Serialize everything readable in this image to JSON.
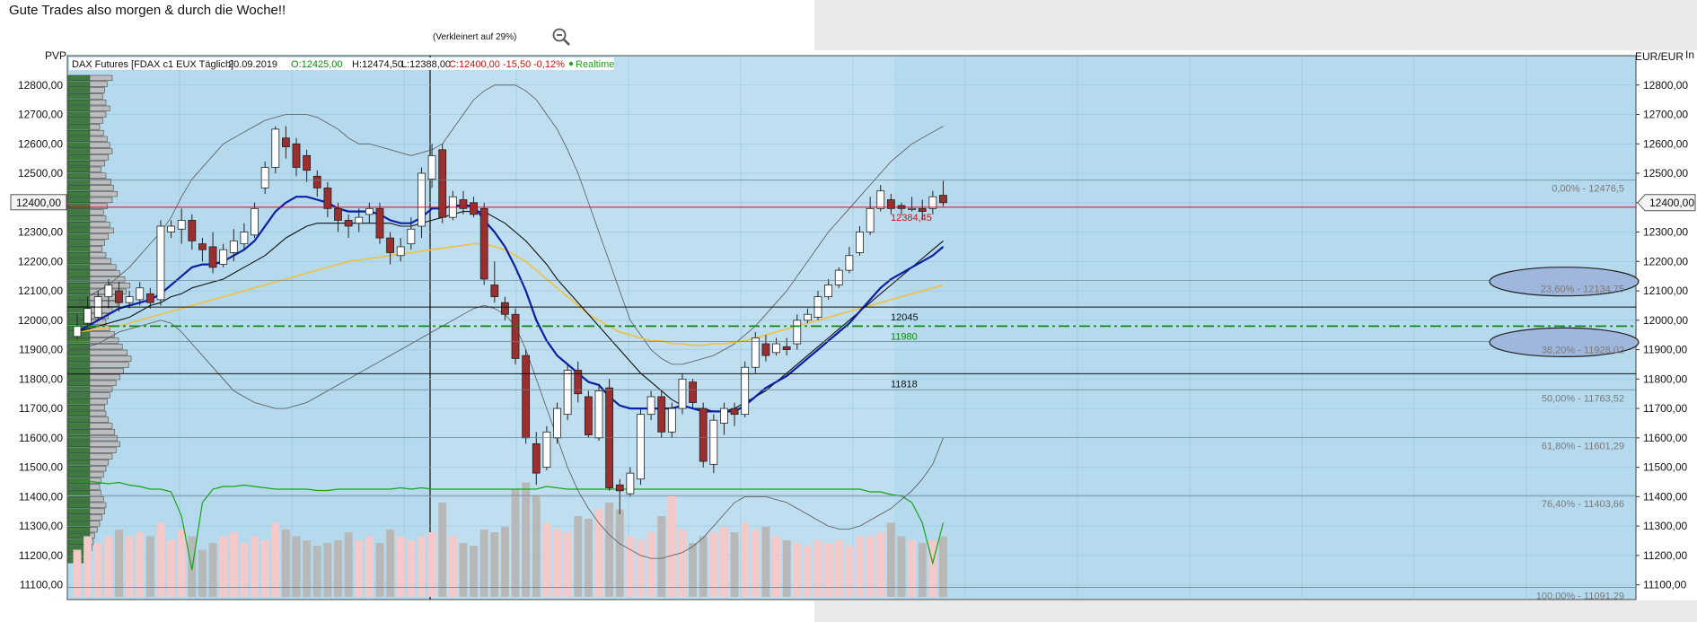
{
  "page": {
    "headline": "Gute Trades also morgen & durch die Woche!!",
    "zoom_caption": "(Verkleinert auf 29%)"
  },
  "chart_data": {
    "type": "candlestick",
    "instrument": "DAX Futures [FDAX c1 EUX Täglich]",
    "header": {
      "date": "20.09.2019",
      "open_label": "O:12425,00",
      "high_label": "H:12474,50",
      "low_label": "L:12388,00",
      "close_label": "C:12400,00",
      "change_label": "-15,50",
      "change_pct_label": "-0,12%",
      "realtime_label": "Realtime"
    },
    "left_axis_label": "PVP",
    "right_axis_label": "EUR/EUR",
    "corner_label": "In",
    "ylim": [
      11050,
      12900
    ],
    "yticks": [
      12800,
      12700,
      12600,
      12500,
      12400,
      12300,
      12200,
      12100,
      12000,
      11900,
      11800,
      11700,
      11600,
      11500,
      11400,
      11300,
      11200,
      11100
    ],
    "ytick_labels": [
      "12800,00",
      "12700,00",
      "12600,00",
      "12500,00",
      "12400,00",
      "12300,00",
      "12200,00",
      "12100,00",
      "12000,00",
      "11900,00",
      "11800,00",
      "11700,00",
      "11600,00",
      "11500,00",
      "11400,00",
      "11300,00",
      "11200,00",
      "11100,00"
    ],
    "last_price": 12400,
    "last_price_label": "12400,00",
    "candles": [
      [
        11945,
        11980,
        11935,
        12020
      ],
      [
        11990,
        12040,
        11980,
        12080
      ],
      [
        12010,
        12080,
        12000,
        12100
      ],
      [
        12080,
        12120,
        12040,
        12140
      ],
      [
        12100,
        12060,
        12030,
        12130
      ],
      [
        12060,
        12080,
        12040,
        12100
      ],
      [
        12070,
        12110,
        12050,
        12130
      ],
      [
        12090,
        12060,
        12040,
        12110
      ],
      [
        12070,
        12320,
        12050,
        12340
      ],
      [
        12300,
        12320,
        12280,
        12340
      ],
      [
        12310,
        12340,
        12260,
        12380
      ],
      [
        12340,
        12270,
        12240,
        12360
      ],
      [
        12260,
        12240,
        12200,
        12280
      ],
      [
        12250,
        12180,
        12160,
        12300
      ],
      [
        12190,
        12240,
        12180,
        12260
      ],
      [
        12230,
        12270,
        12200,
        12310
      ],
      [
        12260,
        12300,
        12240,
        12330
      ],
      [
        12290,
        12380,
        12280,
        12400
      ],
      [
        12450,
        12520,
        12430,
        12540
      ],
      [
        12520,
        12650,
        12500,
        12660
      ],
      [
        12620,
        12590,
        12550,
        12660
      ],
      [
        12600,
        12520,
        12490,
        12620
      ],
      [
        12560,
        12510,
        12470,
        12580
      ],
      [
        12490,
        12450,
        12420,
        12510
      ],
      [
        12450,
        12380,
        12350,
        12470
      ],
      [
        12380,
        12340,
        12300,
        12400
      ],
      [
        12340,
        12320,
        12280,
        12360
      ],
      [
        12330,
        12350,
        12300,
        12380
      ],
      [
        12360,
        12380,
        12330,
        12400
      ],
      [
        12380,
        12280,
        12260,
        12400
      ],
      [
        12280,
        12230,
        12190,
        12300
      ],
      [
        12220,
        12250,
        12200,
        12280
      ],
      [
        12260,
        12310,
        12240,
        12350
      ],
      [
        12320,
        12500,
        12280,
        12520
      ],
      [
        12480,
        12560,
        12450,
        12600
      ],
      [
        12580,
        12350,
        12330,
        12600
      ],
      [
        12350,
        12420,
        12340,
        12440
      ],
      [
        12410,
        12380,
        12360,
        12440
      ],
      [
        12400,
        12360,
        12350,
        12420
      ],
      [
        12380,
        12140,
        12120,
        12400
      ],
      [
        12120,
        12080,
        12060,
        12200
      ],
      [
        12060,
        12020,
        12000,
        12080
      ],
      [
        12020,
        11870,
        11850,
        12040
      ],
      [
        11880,
        11600,
        11580,
        11900
      ],
      [
        11580,
        11480,
        11440,
        11620
      ],
      [
        11500,
        11620,
        11490,
        11640
      ],
      [
        11600,
        11700,
        11580,
        11720
      ],
      [
        11680,
        11830,
        11660,
        11850
      ],
      [
        11830,
        11750,
        11720,
        11860
      ],
      [
        11740,
        11610,
        11600,
        11760
      ],
      [
        11600,
        11760,
        11590,
        11780
      ],
      [
        11770,
        11430,
        11420,
        11800
      ],
      [
        11440,
        11420,
        11340,
        11460
      ],
      [
        11410,
        11480,
        11400,
        11500
      ],
      [
        11460,
        11680,
        11440,
        11700
      ],
      [
        11680,
        11740,
        11660,
        11760
      ],
      [
        11740,
        11620,
        11600,
        11760
      ],
      [
        11620,
        11700,
        11600,
        11720
      ],
      [
        11700,
        11800,
        11680,
        11820
      ],
      [
        11790,
        11720,
        11700,
        11800
      ],
      [
        11700,
        11520,
        11500,
        11720
      ],
      [
        11510,
        11660,
        11480,
        11680
      ],
      [
        11650,
        11700,
        11610,
        11720
      ],
      [
        11700,
        11680,
        11640,
        11720
      ],
      [
        11680,
        11840,
        11670,
        11860
      ],
      [
        11840,
        11940,
        11820,
        11960
      ],
      [
        11920,
        11880,
        11860,
        11950
      ],
      [
        11890,
        11920,
        11880,
        11940
      ],
      [
        11910,
        11900,
        11880,
        11940
      ],
      [
        11920,
        12000,
        11900,
        12020
      ],
      [
        12000,
        12020,
        11990,
        12040
      ],
      [
        12010,
        12080,
        12000,
        12100
      ],
      [
        12080,
        12120,
        12070,
        12140
      ],
      [
        12120,
        12170,
        12110,
        12180
      ],
      [
        12170,
        12220,
        12160,
        12250
      ],
      [
        12230,
        12300,
        12220,
        12320
      ],
      [
        12300,
        12380,
        12290,
        12420
      ],
      [
        12380,
        12440,
        12370,
        12460
      ],
      [
        12410,
        12380,
        12360,
        12430
      ],
      [
        12390,
        12380,
        12360,
        12400
      ],
      [
        12380,
        12380,
        12370,
        12420
      ],
      [
        12380,
        12370,
        12340,
        12410
      ],
      [
        12380,
        12420,
        12360,
        12440
      ],
      [
        12425,
        12400,
        12388,
        12474.5
      ]
    ],
    "volume_relative": [
      0.35,
      0.45,
      0.4,
      0.45,
      0.5,
      0.45,
      0.48,
      0.45,
      0.55,
      0.42,
      0.5,
      0.45,
      0.35,
      0.4,
      0.45,
      0.48,
      0.4,
      0.45,
      0.42,
      0.55,
      0.5,
      0.45,
      0.42,
      0.38,
      0.4,
      0.42,
      0.48,
      0.42,
      0.45,
      0.4,
      0.5,
      0.45,
      0.42,
      0.45,
      0.48,
      0.7,
      0.45,
      0.4,
      0.38,
      0.5,
      0.48,
      0.52,
      0.8,
      0.85,
      0.75,
      0.55,
      0.5,
      0.48,
      0.6,
      0.58,
      0.65,
      0.7,
      0.65,
      0.45,
      0.42,
      0.48,
      0.6,
      0.75,
      0.5,
      0.4,
      0.45,
      0.48,
      0.52,
      0.48,
      0.55,
      0.5,
      0.52,
      0.45,
      0.42,
      0.4,
      0.38,
      0.42,
      0.4,
      0.42,
      0.38,
      0.45,
      0.45,
      0.48,
      0.55,
      0.45,
      0.42,
      0.4,
      0.42,
      0.45
    ],
    "volume_series_relative": [
      0.85,
      0.86,
      0.85,
      0.84,
      0.85,
      0.83,
      0.82,
      0.8,
      0.8,
      0.78,
      0.6,
      0.2,
      0.7,
      0.8,
      0.82,
      0.82,
      0.83,
      0.82,
      0.81,
      0.8,
      0.8,
      0.8,
      0.8,
      0.79,
      0.79,
      0.8,
      0.8,
      0.8,
      0.8,
      0.8,
      0.8,
      0.81,
      0.8,
      0.81,
      0.8,
      0.8,
      0.8,
      0.8,
      0.8,
      0.8,
      0.8,
      0.8,
      0.8,
      0.8,
      0.8,
      0.82,
      0.81,
      0.8,
      0.8,
      0.8,
      0.8,
      0.8,
      0.8,
      0.8,
      0.8,
      0.8,
      0.8,
      0.8,
      0.8,
      0.8,
      0.8,
      0.8,
      0.8,
      0.8,
      0.8,
      0.8,
      0.8,
      0.8,
      0.8,
      0.8,
      0.8,
      0.8,
      0.8,
      0.8,
      0.8,
      0.8,
      0.78,
      0.78,
      0.76,
      0.75,
      0.7,
      0.55,
      0.25,
      0.55
    ],
    "ema_fast": [
      11960,
      11980,
      12000,
      12020,
      12040,
      12050,
      12060,
      12070,
      12090,
      12120,
      12150,
      12180,
      12190,
      12190,
      12200,
      12220,
      12240,
      12270,
      12320,
      12370,
      12400,
      12420,
      12420,
      12410,
      12400,
      12380,
      12370,
      12370,
      12370,
      12360,
      12340,
      12330,
      12330,
      12350,
      12380,
      12380,
      12390,
      12390,
      12390,
      12340,
      12300,
      12250,
      12180,
      12100,
      12000,
      11930,
      11880,
      11850,
      11820,
      11790,
      11780,
      11740,
      11710,
      11700,
      11700,
      11700,
      11700,
      11700,
      11710,
      11700,
      11690,
      11690,
      11690,
      11690,
      11710,
      11740,
      11770,
      11790,
      11810,
      11840,
      11870,
      11900,
      11930,
      11960,
      11990,
      12030,
      12070,
      12110,
      12140,
      12160,
      12180,
      12200,
      12220,
      12250
    ],
    "sma_mid": [
      11960,
      11970,
      11980,
      11990,
      12000,
      12010,
      12030,
      12050,
      12060,
      12080,
      12090,
      12110,
      12120,
      12130,
      12140,
      12160,
      12180,
      12200,
      12220,
      12250,
      12280,
      12300,
      12320,
      12330,
      12330,
      12330,
      12330,
      12330,
      12330,
      12330,
      12330,
      12320,
      12320,
      12330,
      12340,
      12350,
      12360,
      12370,
      12370,
      12370,
      12350,
      12330,
      12300,
      12270,
      12230,
      12190,
      12140,
      12100,
      12060,
      12020,
      11980,
      11940,
      11900,
      11860,
      11820,
      11790,
      11760,
      11730,
      11710,
      11700,
      11700,
      11690,
      11690,
      11700,
      11720,
      11740,
      11760,
      11790,
      11820,
      11850,
      11880,
      11910,
      11940,
      11970,
      12000,
      12030,
      12060,
      12090,
      12120,
      12150,
      12180,
      12210,
      12240,
      12270
    ],
    "sma_slow": [
      11960,
      11965,
      11970,
      11975,
      11980,
      11990,
      12000,
      12010,
      12020,
      12030,
      12040,
      12050,
      12060,
      12070,
      12080,
      12090,
      12100,
      12110,
      12120,
      12130,
      12140,
      12150,
      12160,
      12170,
      12180,
      12190,
      12200,
      12205,
      12210,
      12215,
      12220,
      12225,
      12230,
      12235,
      12240,
      12245,
      12250,
      12255,
      12260,
      12260,
      12250,
      12240,
      12220,
      12200,
      12170,
      12140,
      12110,
      12080,
      12050,
      12020,
      12000,
      11980,
      11960,
      11950,
      11940,
      11930,
      11930,
      11920,
      11920,
      11915,
      11915,
      11920,
      11920,
      11925,
      11930,
      11940,
      11950,
      11960,
      11970,
      11980,
      11990,
      12000,
      12010,
      12020,
      12030,
      12040,
      12050,
      12060,
      12070,
      12080,
      12090,
      12100,
      12110,
      12120
    ],
    "bb_upper": [
      12050,
      12080,
      12100,
      12120,
      12150,
      12180,
      12220,
      12260,
      12300,
      12350,
      12420,
      12480,
      12520,
      12560,
      12600,
      12620,
      12640,
      12660,
      12680,
      12690,
      12700,
      12700,
      12700,
      12690,
      12670,
      12650,
      12620,
      12600,
      12600,
      12590,
      12580,
      12570,
      12560,
      12570,
      12580,
      12600,
      12650,
      12700,
      12750,
      12780,
      12800,
      12800,
      12800,
      12780,
      12750,
      12700,
      12650,
      12580,
      12500,
      12400,
      12300,
      12200,
      12100,
      12000,
      11950,
      11900,
      11870,
      11850,
      11850,
      11860,
      11870,
      11880,
      11900,
      11920,
      11950,
      11980,
      12020,
      12060,
      12100,
      12150,
      12200,
      12250,
      12300,
      12340,
      12380,
      12420,
      12460,
      12500,
      12540,
      12570,
      12600,
      12620,
      12640,
      12660
    ],
    "bb_lower": [
      11900,
      11910,
      11920,
      11940,
      11960,
      11970,
      11980,
      11990,
      12000,
      11990,
      11960,
      11920,
      11880,
      11840,
      11800,
      11760,
      11740,
      11720,
      11710,
      11700,
      11700,
      11710,
      11720,
      11740,
      11760,
      11780,
      11800,
      11820,
      11840,
      11860,
      11880,
      11900,
      11920,
      11940,
      11960,
      11980,
      12000,
      12020,
      12040,
      12050,
      12040,
      12020,
      11980,
      11900,
      11800,
      11700,
      11600,
      11500,
      11420,
      11360,
      11310,
      11270,
      11240,
      11220,
      11200,
      11190,
      11190,
      11200,
      11210,
      11230,
      11260,
      11300,
      11340,
      11380,
      11400,
      11400,
      11400,
      11390,
      11380,
      11360,
      11340,
      11320,
      11300,
      11290,
      11290,
      11300,
      11320,
      11340,
      11360,
      11390,
      11420,
      11460,
      11510,
      11600
    ],
    "price_levels": [
      {
        "value": 12384.45,
        "label": "12384,45",
        "color": "#cc1111",
        "style": "solid"
      },
      {
        "value": 12045,
        "label": "12045",
        "color": "#111111",
        "style": "solid"
      },
      {
        "value": 11980,
        "label": "11980",
        "color": "#118811",
        "style": "dashdot"
      },
      {
        "value": 11818,
        "label": "11818",
        "color": "#111111",
        "style": "solid"
      }
    ],
    "fibonacci": [
      {
        "value": 12476.5,
        "label": "0,00% - 12476,5"
      },
      {
        "value": 12134.75,
        "label": "23,60% - 12134,75",
        "highlighted": true
      },
      {
        "value": 11928.02,
        "label": "38,20% - 11928,02",
        "highlighted": true
      },
      {
        "value": 11763.52,
        "label": "50,00% - 11763,52"
      },
      {
        "value": 11601.29,
        "label": "61,80% - 11601,29"
      },
      {
        "value": 11403.66,
        "label": "76,40% - 11403,66"
      },
      {
        "value": 11091.29,
        "label": "100,00% - 11091,29"
      }
    ],
    "volume_profile_relative": [
      0.7,
      0.62,
      0.58,
      0.55,
      0.6,
      0.66,
      0.6,
      0.55,
      0.5,
      0.56,
      0.62,
      0.66,
      0.7,
      0.64,
      0.58,
      0.52,
      0.6,
      0.68,
      0.72,
      0.78,
      0.7,
      0.62,
      0.56,
      0.6,
      0.66,
      0.72,
      0.64,
      0.58,
      0.54,
      0.6,
      0.68,
      0.76,
      0.82,
      0.9,
      0.98,
      0.92,
      0.84,
      0.78,
      0.7,
      0.64,
      0.6,
      0.66,
      0.74,
      0.8,
      0.86,
      0.94,
      1.0,
      0.96,
      0.88,
      0.82,
      0.76,
      0.7,
      0.66,
      0.62,
      0.58,
      0.6,
      0.64,
      0.7,
      0.74,
      0.78,
      0.82,
      0.76,
      0.7,
      0.64,
      0.6,
      0.56,
      0.52,
      0.5,
      0.52,
      0.56,
      0.6,
      0.58,
      0.54,
      0.5,
      0.46,
      0.42,
      0.4,
      0.38,
      0.36,
      0.34
    ],
    "colors": {
      "plot_bg": "#b5daee",
      "plot_bg_light": "#c7e3f2",
      "grid": "#98c5dd",
      "candle_up": "#ffffff",
      "candle_down": "#9b2e2e",
      "ema_fast": "#0b1fa4",
      "sma_mid": "#111111",
      "sma_slow": "#f0c040",
      "bollinger": "#555555",
      "volume_line": "#18a318",
      "volume_up": "#f3c9c9",
      "volume_down": "#b8b8b8",
      "profile_fill": "#bdbdbd",
      "profile_value_area": "#3f7a3f"
    }
  }
}
